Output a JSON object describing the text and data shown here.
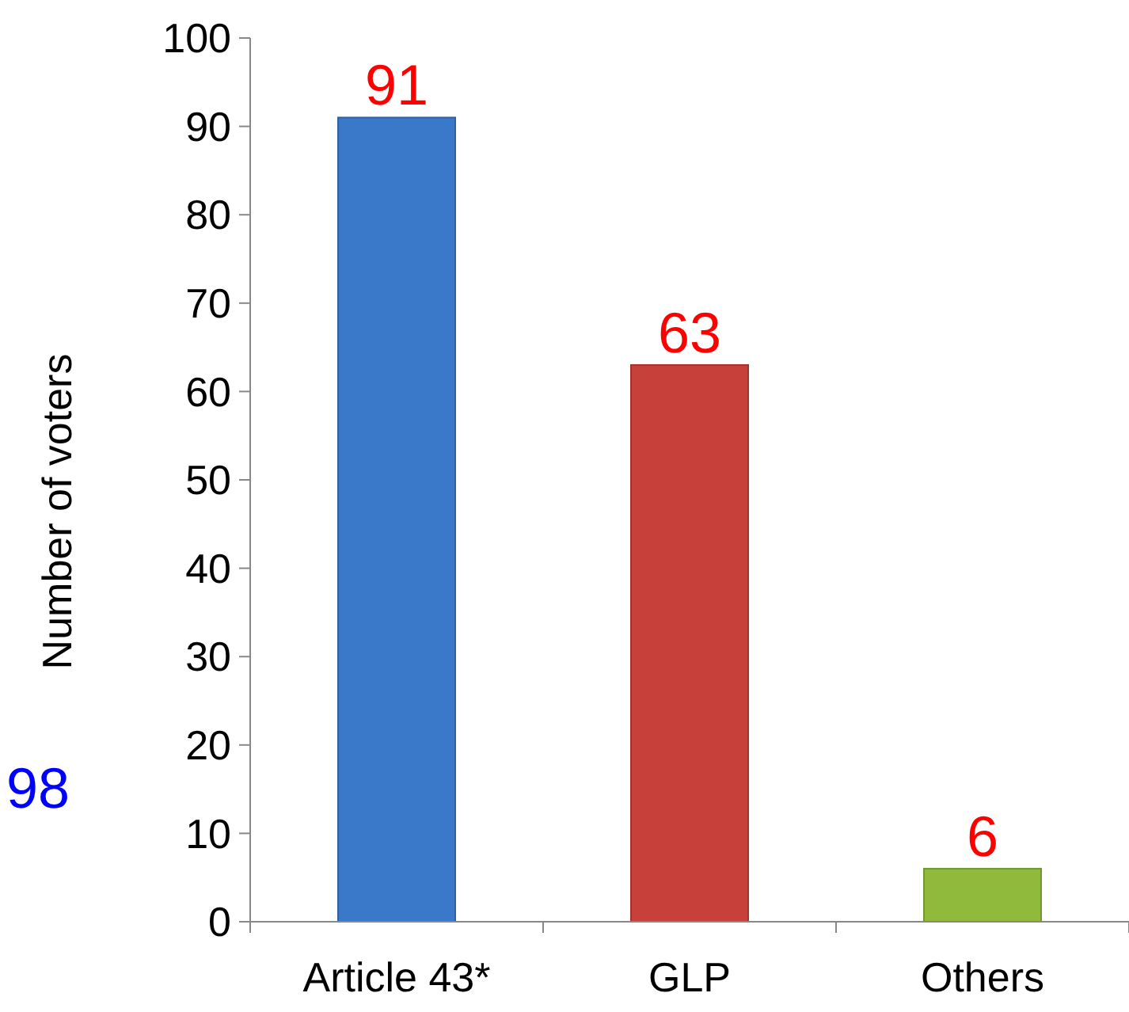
{
  "chart_data": {
    "type": "bar",
    "ylabel": "Number of voters",
    "categories": [
      "Article 43*",
      "GLP",
      "Others"
    ],
    "values": [
      91,
      63,
      6
    ],
    "colors": [
      "#3a78c9",
      "#c8403a",
      "#8fba3c"
    ],
    "ylim": [
      0,
      100
    ],
    "yticks": [
      0,
      10,
      20,
      30,
      40,
      50,
      60,
      70,
      80,
      90,
      100
    ],
    "data_labels": true,
    "grid": false,
    "annotations": [
      "98"
    ]
  }
}
